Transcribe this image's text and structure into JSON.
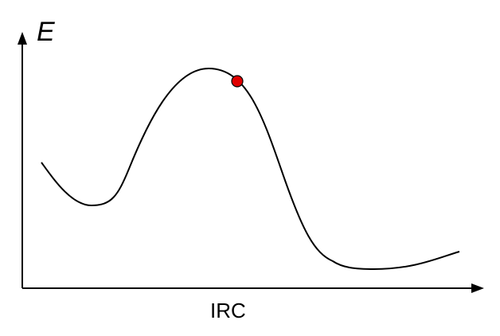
{
  "diagram": {
    "y_axis_label": "E",
    "x_axis_label": "IRC",
    "colors": {
      "axis": "#000000",
      "curve": "#000000",
      "marker_fill": "#e00000",
      "marker_stroke": "#000000",
      "background": "#ffffff"
    }
  }
}
